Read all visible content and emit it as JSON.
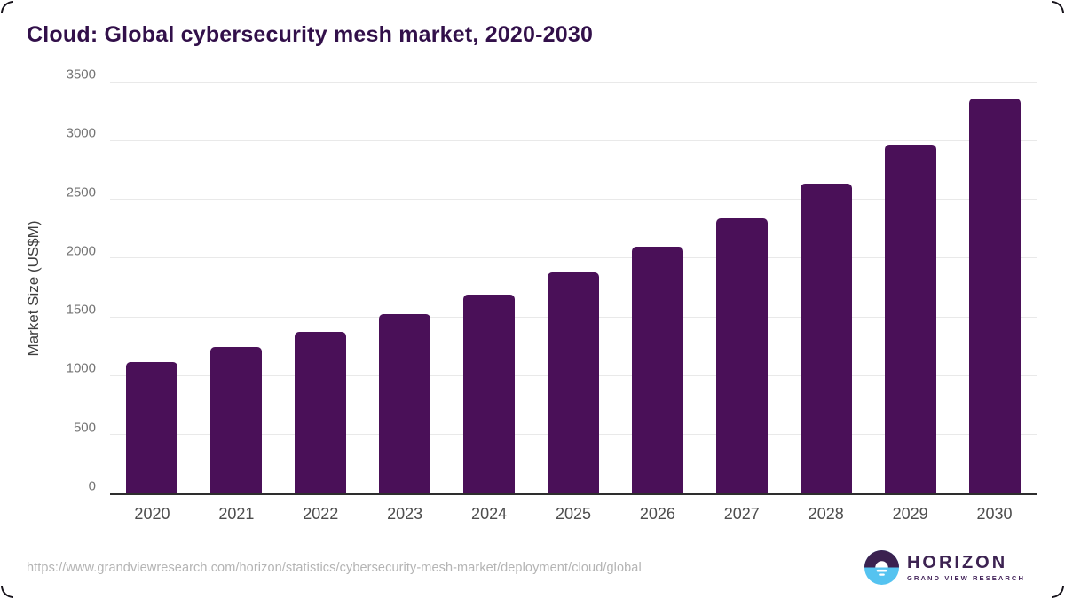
{
  "chart_data": {
    "type": "bar",
    "title": "Cloud: Global cybersecurity mesh market, 2020-2030",
    "categories": [
      "2020",
      "2021",
      "2022",
      "2023",
      "2024",
      "2025",
      "2026",
      "2027",
      "2028",
      "2029",
      "2030"
    ],
    "values": [
      1120,
      1245,
      1375,
      1525,
      1690,
      1875,
      2095,
      2340,
      2635,
      2965,
      3355
    ],
    "xlabel": "",
    "ylabel": "Market Size (US$M)",
    "ylim": [
      0,
      3500
    ],
    "ytick_step": 500,
    "grid": "horizontal",
    "legend": "none",
    "bar_color": "#4a1058"
  },
  "colors": {
    "title": "#32104a",
    "bar": "#4a1058",
    "gridline": "#e9e9e9",
    "axis_line": "#2e2e2e",
    "y_tick_label": "#737373",
    "x_tick_label": "#4d4d4d",
    "url_text": "#b4b4b4",
    "logo_dark_purple": "#3b2150",
    "logo_sky_blue": "#55c3f0"
  },
  "footer": {
    "source_url": "https://www.grandviewresearch.com/horizon/statistics/cybersecurity-mesh-market/deployment/cloud/global",
    "logo": {
      "brand": "HORIZON",
      "subtitle": "GRAND VIEW RESEARCH"
    }
  }
}
